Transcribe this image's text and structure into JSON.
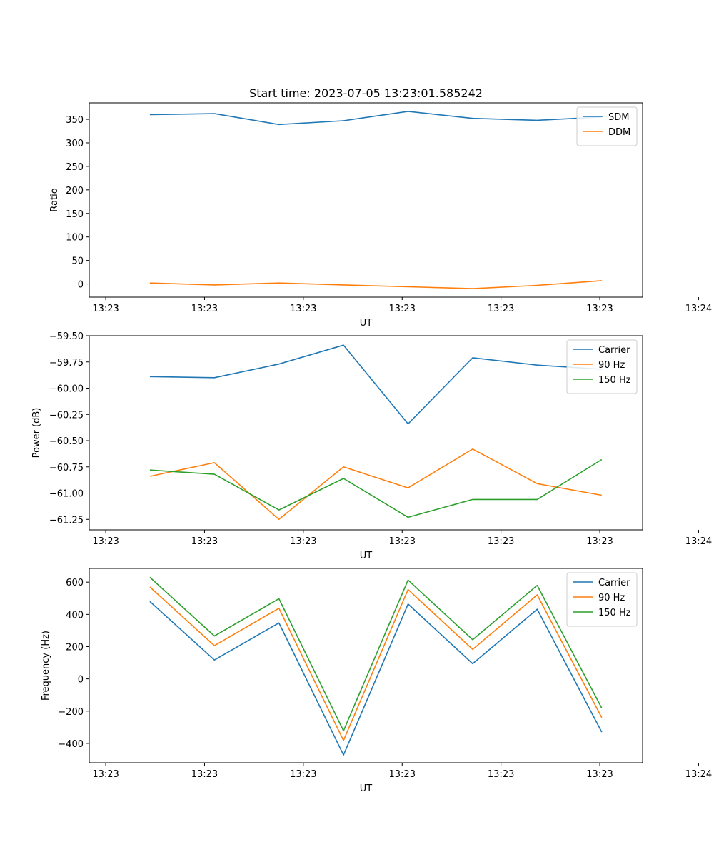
{
  "chart_data": [
    {
      "type": "line",
      "title": "Start time: 2023-07-05 13:23:01.585242",
      "xlabel": "UT",
      "ylabel": "Ratio",
      "xlim": [
        0,
        8.4
      ],
      "ylim": [
        -28,
        385
      ],
      "xticks": [
        0.25,
        1.75,
        3.25,
        4.75,
        6.25,
        7.75,
        9.25
      ],
      "xtick_labels": [
        "13:23",
        "13:23",
        "13:23",
        "13:23",
        "13:23",
        "13:23",
        "13:24"
      ],
      "yticks": [
        0,
        50,
        100,
        150,
        200,
        250,
        300,
        350
      ],
      "ytick_labels": [
        "0",
        "50",
        "100",
        "150",
        "200",
        "250",
        "300",
        "350"
      ],
      "legend_position": "top-right",
      "x": [
        0.92,
        1.9,
        2.88,
        3.86,
        4.84,
        5.82,
        6.8,
        7.78
      ],
      "series": [
        {
          "name": "SDM",
          "color": "#1f77b4",
          "values": [
            360,
            362,
            339,
            347,
            367,
            352,
            348,
            355
          ]
        },
        {
          "name": "DDM",
          "color": "#ff7f0e",
          "values": [
            2,
            -2,
            2,
            -2,
            -6,
            -10,
            -3,
            7
          ]
        }
      ]
    },
    {
      "type": "line",
      "title": "",
      "xlabel": "UT",
      "ylabel": "Power (dB)",
      "xlim": [
        0,
        8.4
      ],
      "ylim": [
        -61.35,
        -59.5
      ],
      "xticks": [
        0.25,
        1.75,
        3.25,
        4.75,
        6.25,
        7.75,
        9.25
      ],
      "xtick_labels": [
        "13:23",
        "13:23",
        "13:23",
        "13:23",
        "13:23",
        "13:23",
        "13:24"
      ],
      "yticks": [
        -59.5,
        -59.75,
        -60.0,
        -60.25,
        -60.5,
        -60.75,
        -61.0,
        -61.25
      ],
      "ytick_labels": [
        "−59.50",
        "−59.75",
        "−60.00",
        "−60.25",
        "−60.50",
        "−60.75",
        "−61.00",
        "−61.25"
      ],
      "legend_position": "top-right",
      "x": [
        0.92,
        1.9,
        2.88,
        3.86,
        4.84,
        5.82,
        6.8,
        7.78
      ],
      "series": [
        {
          "name": "Carrier",
          "color": "#1f77b4",
          "values": [
            -59.89,
            -59.9,
            -59.77,
            -59.59,
            -60.34,
            -59.71,
            -59.78,
            -59.82
          ]
        },
        {
          "name": "90 Hz",
          "color": "#ff7f0e",
          "values": [
            -60.84,
            -60.71,
            -61.25,
            -60.75,
            -60.95,
            -60.58,
            -60.91,
            -61.02
          ]
        },
        {
          "name": "150 Hz",
          "color": "#2ca02c",
          "values": [
            -60.78,
            -60.82,
            -61.16,
            -60.86,
            -61.23,
            -61.06,
            -61.06,
            -60.68
          ]
        }
      ]
    },
    {
      "type": "line",
      "title": "",
      "xlabel": "UT",
      "ylabel": "Frequency (Hz)",
      "xlim": [
        0,
        8.4
      ],
      "ylim": [
        -520,
        685
      ],
      "xticks": [
        0.25,
        1.75,
        3.25,
        4.75,
        6.25,
        7.75,
        9.25
      ],
      "xtick_labels": [
        "13:23",
        "13:23",
        "13:23",
        "13:23",
        "13:23",
        "13:23",
        "13:24"
      ],
      "yticks": [
        -400,
        -200,
        0,
        200,
        400,
        600
      ],
      "ytick_labels": [
        "−400",
        "−200",
        "0",
        "200",
        "400",
        "600"
      ],
      "legend_position": "top-right",
      "x": [
        0.92,
        1.9,
        2.88,
        3.86,
        4.84,
        5.82,
        6.8,
        7.78
      ],
      "series": [
        {
          "name": "Carrier",
          "color": "#1f77b4",
          "values": [
            480,
            117,
            347,
            -472,
            464,
            94,
            432,
            -330
          ]
        },
        {
          "name": "90 Hz",
          "color": "#ff7f0e",
          "values": [
            570,
            206,
            438,
            -382,
            554,
            183,
            521,
            -240
          ]
        },
        {
          "name": "150 Hz",
          "color": "#2ca02c",
          "values": [
            630,
            266,
            497,
            -322,
            613,
            243,
            580,
            -181
          ]
        }
      ]
    }
  ]
}
